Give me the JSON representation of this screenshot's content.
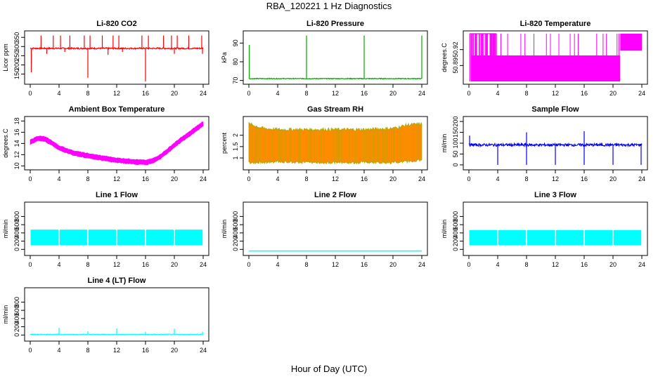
{
  "page": {
    "title": "RBA_120221  1 Hz Diagnostics",
    "x_caption": "Hour of Day (UTC)"
  },
  "chart_data": [
    {
      "id": "co2",
      "type": "line",
      "title": "Li-820 CO2",
      "ylabel": "Licor ppm",
      "color": "#ff0000",
      "xlim": [
        0,
        24
      ],
      "ylim": [
        110,
        370
      ],
      "x_ticks": [
        0,
        4,
        8,
        12,
        16,
        20,
        24
      ],
      "y_ticks": [
        150,
        200,
        250,
        300,
        350
      ],
      "series": [
        {
          "style": "baseline-spikes",
          "baseline": 290,
          "noise": 4,
          "spikes": [
            [
              0.15,
              210
            ],
            [
              0.15,
              160
            ],
            [
              1.5,
              360
            ],
            [
              2.3,
              260
            ],
            [
              3.2,
              360
            ],
            [
              4.2,
              360
            ],
            [
              4.8,
              270
            ],
            [
              5.5,
              360
            ],
            [
              7.5,
              360
            ],
            [
              8.0,
              130
            ],
            [
              8.3,
              360
            ],
            [
              10.0,
              360
            ],
            [
              10.8,
              255
            ],
            [
              11.5,
              360
            ],
            [
              12.3,
              360
            ],
            [
              12.8,
              270
            ],
            [
              15.5,
              360
            ],
            [
              16.0,
              110
            ],
            [
              16.4,
              360
            ],
            [
              18.5,
              360
            ],
            [
              19.6,
              360
            ],
            [
              20.0,
              260
            ],
            [
              20.4,
              360
            ],
            [
              22.0,
              360
            ],
            [
              23.8,
              360
            ],
            [
              23.9,
              260
            ]
          ]
        }
      ]
    },
    {
      "id": "pressure",
      "type": "line",
      "title": "Li-820 Pressure",
      "ylabel": "kPa",
      "color": "#00aa00",
      "xlim": [
        0,
        24
      ],
      "ylim": [
        69.5,
        95
      ],
      "x_ticks": [
        0,
        4,
        8,
        12,
        16,
        20,
        24
      ],
      "y_ticks": [
        70,
        80,
        90
      ],
      "series": [
        {
          "style": "baseline-spikes",
          "baseline": 71,
          "noise": 0.2,
          "spikes": [
            [
              0.05,
              89
            ],
            [
              8.0,
              94
            ],
            [
              16.0,
              94
            ],
            [
              24.0,
              94
            ]
          ]
        }
      ]
    },
    {
      "id": "licor_temp",
      "type": "area",
      "title": "Li-820 Temperature",
      "ylabel": "degrees.C",
      "color": "#ff00ff",
      "xlim": [
        0,
        24
      ],
      "ylim": [
        50.86,
        50.95
      ],
      "x_ticks": [
        0,
        4,
        8,
        12,
        16,
        20,
        24
      ],
      "y_ticks": [
        50.89,
        50.92
      ],
      "series": [
        {
          "style": "digitized-band",
          "low": 50.86,
          "mid": 50.905,
          "high": 50.95,
          "segments": [
            [
              0,
              21,
              "mid"
            ],
            [
              21,
              24,
              "high-band"
            ]
          ]
        }
      ]
    },
    {
      "id": "box_temp",
      "type": "line",
      "title": "Ambient Box Temperature",
      "ylabel": "degrees.C",
      "color": "#ff00ff",
      "xlim": [
        0,
        24
      ],
      "ylim": [
        9.8,
        18.3
      ],
      "x_ticks": [
        0,
        4,
        8,
        12,
        16,
        20,
        24
      ],
      "y_ticks": [
        10,
        12,
        14,
        16,
        18
      ],
      "series": [
        {
          "style": "band",
          "width": 0.7,
          "x": [
            0,
            1,
            2,
            3,
            4,
            6,
            8,
            10,
            12,
            14,
            15,
            16,
            17,
            18,
            19,
            20,
            21,
            22,
            23,
            24
          ],
          "y": [
            14.2,
            14.9,
            14.8,
            14.1,
            13.2,
            12.3,
            11.8,
            11.4,
            11.0,
            10.8,
            10.7,
            10.6,
            10.9,
            11.6,
            12.6,
            13.7,
            14.7,
            15.6,
            16.6,
            17.5
          ]
        }
      ]
    },
    {
      "id": "rh",
      "type": "area",
      "title": "Gas Stream RH",
      "ylabel": "percent",
      "color": "#ff8c00",
      "color2": "#aaaa00",
      "xlim": [
        0,
        24
      ],
      "ylim": [
        0.6,
        2.7
      ],
      "x_ticks": [
        0,
        4,
        8,
        12,
        16,
        20,
        24
      ],
      "y_ticks": [
        1.0,
        1.5,
        2.0
      ],
      "series": [
        {
          "style": "dense-band",
          "x": [
            0,
            2,
            4,
            8,
            12,
            16,
            20,
            22,
            24
          ],
          "low": [
            0.8,
            0.8,
            0.85,
            0.8,
            0.8,
            0.8,
            0.8,
            0.85,
            0.9
          ],
          "high": [
            2.5,
            2.3,
            2.25,
            2.25,
            2.25,
            2.25,
            2.3,
            2.45,
            2.5
          ]
        }
      ]
    },
    {
      "id": "sample_flow",
      "type": "line",
      "title": "Sample Flow",
      "ylabel": "ml/min",
      "color": "#0000ff",
      "xlim": [
        0,
        24
      ],
      "ylim": [
        -10,
        210
      ],
      "x_ticks": [
        0,
        4,
        8,
        12,
        16,
        20,
        24
      ],
      "y_ticks": [
        0,
        50,
        100,
        150,
        200
      ],
      "series": [
        {
          "style": "baseline-spikes",
          "baseline": 92,
          "noise": 6,
          "spikes": [
            [
              0.1,
              135
            ],
            [
              4.0,
              0
            ],
            [
              8.0,
              150
            ],
            [
              8.0,
              0
            ],
            [
              12.0,
              0
            ],
            [
              16.0,
              155
            ],
            [
              16.0,
              0
            ],
            [
              20.0,
              0
            ],
            [
              23.9,
              0
            ]
          ]
        }
      ]
    },
    {
      "id": "line1",
      "type": "area",
      "title": "Line 1 Flow",
      "ylabel": "ml/min",
      "color": "#00ffff",
      "xlim": [
        0,
        24
      ],
      "ylim": [
        -80,
        1080
      ],
      "x_ticks": [
        0,
        4,
        8,
        12,
        16,
        20,
        24
      ],
      "y_ticks": [
        0,
        200,
        400,
        600,
        800
      ],
      "series": [
        {
          "style": "gapped-band",
          "low": 100,
          "high": 480,
          "gaps": [
            4,
            8,
            12,
            16,
            20,
            24
          ]
        }
      ]
    },
    {
      "id": "line2",
      "type": "line",
      "title": "Line 2 Flow",
      "ylabel": "ml/min",
      "color": "#00ffff",
      "xlim": [
        0,
        24
      ],
      "ylim": [
        -80,
        1080
      ],
      "x_ticks": [
        0,
        4,
        8,
        12,
        16,
        20,
        24
      ],
      "y_ticks": [
        0,
        200,
        400,
        600,
        800
      ],
      "series": [
        {
          "style": "flat",
          "value": -40
        }
      ]
    },
    {
      "id": "line3",
      "type": "area",
      "title": "Line 3 Flow",
      "ylabel": "ml/min",
      "color": "#00ffff",
      "xlim": [
        0,
        24
      ],
      "ylim": [
        -80,
        1080
      ],
      "x_ticks": [
        0,
        4,
        8,
        12,
        16,
        20,
        24
      ],
      "y_ticks": [
        0,
        200,
        400,
        600,
        800
      ],
      "series": [
        {
          "style": "gapped-band",
          "low": 100,
          "high": 470,
          "gaps": [
            4,
            8,
            12,
            16,
            20,
            24
          ]
        }
      ]
    },
    {
      "id": "line4",
      "type": "line",
      "title": "Line 4 (LT) Flow",
      "ylabel": "ml/min",
      "color": "#00ffff",
      "xlim": [
        0,
        24
      ],
      "ylim": [
        -80,
        1080
      ],
      "x_ticks": [
        0,
        4,
        8,
        12,
        16,
        20,
        24
      ],
      "y_ticks": [
        0,
        200,
        400,
        600,
        800
      ],
      "series": [
        {
          "style": "baseline-spikes",
          "baseline": 15,
          "noise": 8,
          "spikes": [
            [
              4.0,
              170
            ],
            [
              8.0,
              90
            ],
            [
              12.0,
              160
            ],
            [
              16.0,
              80
            ],
            [
              20.0,
              150
            ],
            [
              23.9,
              80
            ]
          ]
        }
      ]
    }
  ]
}
